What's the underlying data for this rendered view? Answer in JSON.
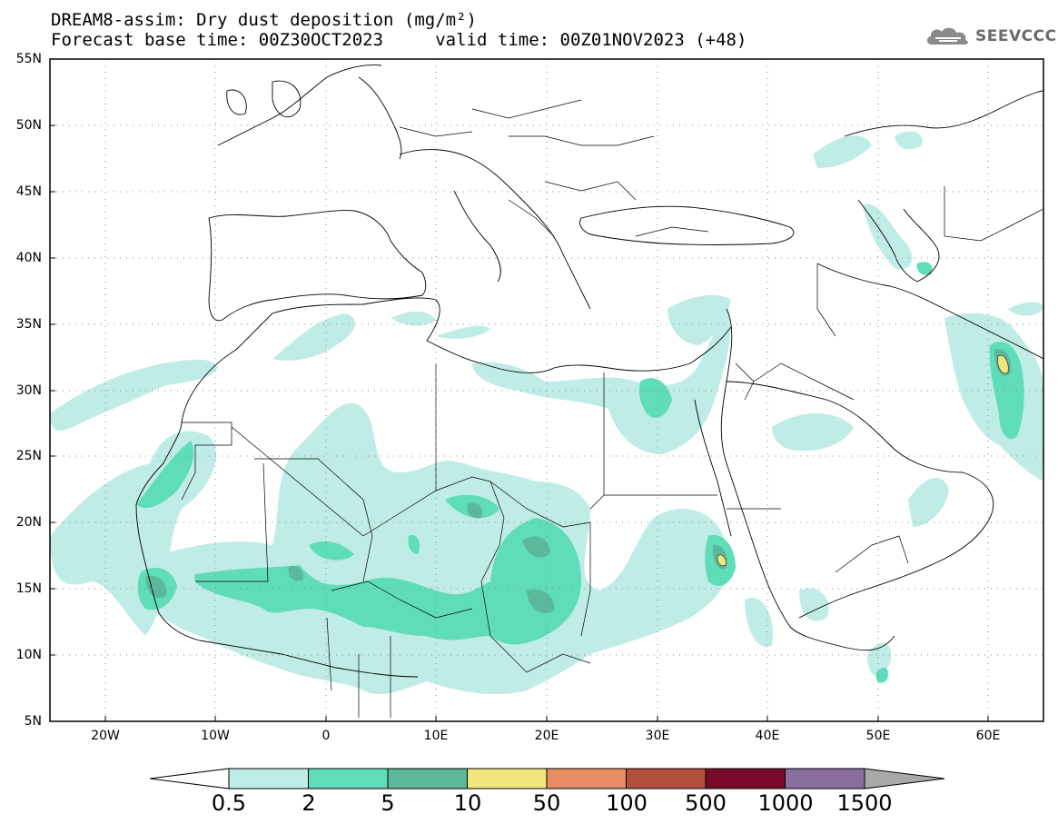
{
  "header": {
    "title_line1": "DREAM8-assim: Dry dust deposition (mg/m²)",
    "title_line2": "Forecast base time: 00Z30OCT2023     valid time: 00Z01NOV2023 (+48)"
  },
  "logo": {
    "icon": "cloud-icon",
    "text": "SEEVCCC"
  },
  "axes": {
    "lat_labels": [
      "55N",
      "50N",
      "45N",
      "40N",
      "35N",
      "30N",
      "25N",
      "20N",
      "15N",
      "10N",
      "5N"
    ],
    "lon_labels": [
      "20W",
      "10W",
      "0",
      "10E",
      "20E",
      "30E",
      "40E",
      "50E",
      "60E"
    ]
  },
  "legend": {
    "labels": [
      "0.5",
      "2",
      "5",
      "10",
      "50",
      "100",
      "500",
      "1000",
      "1500"
    ],
    "colors": [
      "#c0ece6",
      "#5fdcb8",
      "#5bb89a",
      "#f0e67a",
      "#e88c64",
      "#b24e3e",
      "#7a0a2a",
      "#8a6e9e",
      "#a9a9a9"
    ]
  },
  "map": {
    "extent": {
      "lon_min": -25,
      "lon_max": 65,
      "lat_min": 5,
      "lat_max": 55
    },
    "grid": "dotted"
  }
}
